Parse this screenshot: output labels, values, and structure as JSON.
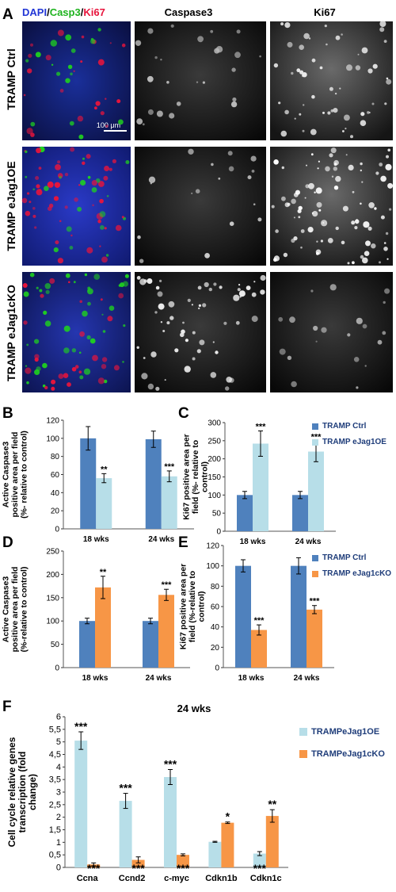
{
  "panel_a": {
    "letter": "A",
    "header_dapi": "DAPI",
    "header_sep1": "/",
    "header_casp3": "Casp3",
    "header_sep2": "/",
    "header_ki67": "Ki67",
    "col_caspase3": "Caspase3",
    "col_ki67": "Ki67",
    "row_labels": [
      "TRAMP Ctrl",
      "TRAMP eJag1OE",
      "TRAMP eJag1cKO"
    ],
    "scale_bar": "100 μm"
  },
  "colors": {
    "ctrl": "#4f81bd",
    "oe": "#b7dee8",
    "cko": "#f79646",
    "dapi": "#2236d6",
    "casp3": "#1fd11f",
    "ki67": "#e8143c"
  },
  "chart_data": [
    {
      "panel": "B",
      "type": "bar",
      "categories": [
        "18 wks",
        "24 wks"
      ],
      "ylabel": "Active Caspase3 positive area per field (%- relative to control)",
      "ylim": [
        0,
        120
      ],
      "yticks": [
        0,
        20,
        40,
        60,
        80,
        100,
        120
      ],
      "series": [
        {
          "values": [
            100,
            99
          ],
          "errors": [
            13,
            9
          ],
          "sig": [
            "",
            ""
          ]
        },
        {
          "values": [
            56,
            58
          ],
          "errors": [
            5,
            6
          ],
          "sig": [
            "**",
            "***"
          ]
        }
      ]
    },
    {
      "panel": "C",
      "type": "bar",
      "categories": [
        "18 wks",
        "24 wks"
      ],
      "ylabel": "Ki67 positive area per field (%- relative to control)",
      "ylim": [
        0,
        300
      ],
      "yticks": [
        0,
        50,
        100,
        150,
        200,
        250,
        300
      ],
      "legend": [
        "TRAMP Ctrl",
        "TRAMP eJag1OE"
      ],
      "series": [
        {
          "name": "TRAMP Ctrl",
          "values": [
            100,
            100
          ],
          "errors": [
            10,
            10
          ],
          "sig": [
            "",
            ""
          ]
        },
        {
          "name": "TRAMP eJag1OE",
          "values": [
            242,
            220
          ],
          "errors": [
            35,
            28
          ],
          "sig": [
            "***",
            "***"
          ]
        }
      ]
    },
    {
      "panel": "D",
      "type": "bar",
      "categories": [
        "18 wks",
        "24 wks"
      ],
      "ylabel": "Active Caspase3 positive area per field (%-relative to control)",
      "ylim": [
        0,
        250
      ],
      "yticks": [
        0,
        50,
        100,
        150,
        200,
        250
      ],
      "series": [
        {
          "values": [
            100,
            100
          ],
          "errors": [
            6,
            6
          ],
          "sig": [
            "",
            ""
          ]
        },
        {
          "values": [
            172,
            156
          ],
          "errors": [
            24,
            12
          ],
          "sig": [
            "**",
            "***"
          ]
        }
      ]
    },
    {
      "panel": "E",
      "type": "bar",
      "categories": [
        "18 wks",
        "24 wks"
      ],
      "ylabel": "Ki67 positive area per field (%-relative to control)",
      "ylim": [
        0,
        120
      ],
      "yticks": [
        0,
        20,
        40,
        60,
        80,
        100,
        120
      ],
      "legend": [
        "TRAMP Ctrl",
        "TRAMP eJag1cKO"
      ],
      "series": [
        {
          "name": "TRAMP Ctrl",
          "values": [
            100,
            100
          ],
          "errors": [
            6,
            8
          ],
          "sig": [
            "",
            ""
          ]
        },
        {
          "name": "TRAMP eJag1cKO",
          "values": [
            37,
            57
          ],
          "errors": [
            5,
            4
          ],
          "sig": [
            "***",
            "***"
          ]
        }
      ]
    },
    {
      "panel": "F",
      "type": "bar",
      "title": "24 wks",
      "categories": [
        "Ccna",
        "Ccnd2",
        "c-myc",
        "Cdkn1b",
        "Cdkn1c"
      ],
      "ylabel": "Cell cycle relative genes transcription (fold change)",
      "ylim": [
        0,
        6
      ],
      "yticks": [
        "0",
        "0,5",
        "1",
        "1,5",
        "2",
        "2,5",
        "3",
        "3,5",
        "4",
        "4,5",
        "5",
        "5,5",
        "6"
      ],
      "legend": [
        "TRAMPeJag1OE",
        "TRAMPeJag1cKO"
      ],
      "series": [
        {
          "name": "TRAMPeJag1OE",
          "values": [
            5.05,
            2.65,
            3.6,
            1.02,
            0.55
          ],
          "errors": [
            0.35,
            0.3,
            0.3,
            0.02,
            0.08
          ],
          "sig": [
            "***",
            "***",
            "***",
            "",
            "***"
          ]
        },
        {
          "name": "TRAMPeJag1cKO",
          "values": [
            0.12,
            0.3,
            0.5,
            1.78,
            2.05
          ],
          "errors": [
            0.06,
            0.12,
            0.04,
            0.03,
            0.25
          ],
          "sig": [
            "***",
            "***",
            "***",
            "*",
            "**"
          ]
        }
      ]
    }
  ]
}
